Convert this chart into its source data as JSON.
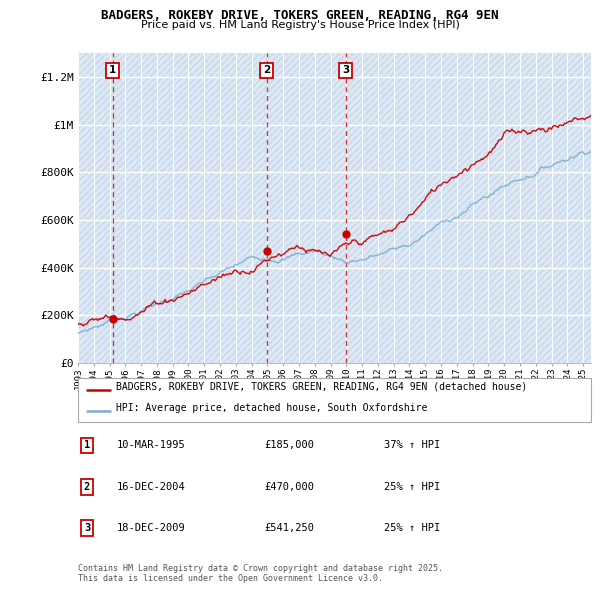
{
  "title": "BADGERS, ROKEBY DRIVE, TOKERS GREEN, READING, RG4 9EN",
  "subtitle": "Price paid vs. HM Land Registry's House Price Index (HPI)",
  "legend_line1": "BADGERS, ROKEBY DRIVE, TOKERS GREEN, READING, RG4 9EN (detached house)",
  "legend_line2": "HPI: Average price, detached house, South Oxfordshire",
  "copyright": "Contains HM Land Registry data © Crown copyright and database right 2025.\nThis data is licensed under the Open Government Licence v3.0.",
  "sale_color": "#cc0000",
  "hpi_color": "#7aafd4",
  "background_color": "#dce8f5",
  "hatch_color": "#b8c8d8",
  "grid_color": "#ffffff",
  "sale_points": [
    {
      "date": 1995.19,
      "price": 185000,
      "label": "1"
    },
    {
      "date": 2004.96,
      "price": 470000,
      "label": "2"
    },
    {
      "date": 2009.96,
      "price": 541250,
      "label": "3"
    }
  ],
  "sale_annotations": [
    {
      "label": "1",
      "date": "10-MAR-1995",
      "price": "£185,000",
      "hpi": "37% ↑ HPI"
    },
    {
      "label": "2",
      "date": "16-DEC-2004",
      "price": "£470,000",
      "hpi": "25% ↑ HPI"
    },
    {
      "label": "3",
      "date": "18-DEC-2009",
      "price": "£541,250",
      "hpi": "25% ↑ HPI"
    }
  ],
  "ylim": [
    0,
    1300000
  ],
  "yticks": [
    0,
    200000,
    400000,
    600000,
    800000,
    1000000,
    1200000
  ],
  "ytick_labels": [
    "£0",
    "£200K",
    "£400K",
    "£600K",
    "£800K",
    "£1M",
    "£1.2M"
  ],
  "xmin": 1993.0,
  "xmax": 2025.5
}
